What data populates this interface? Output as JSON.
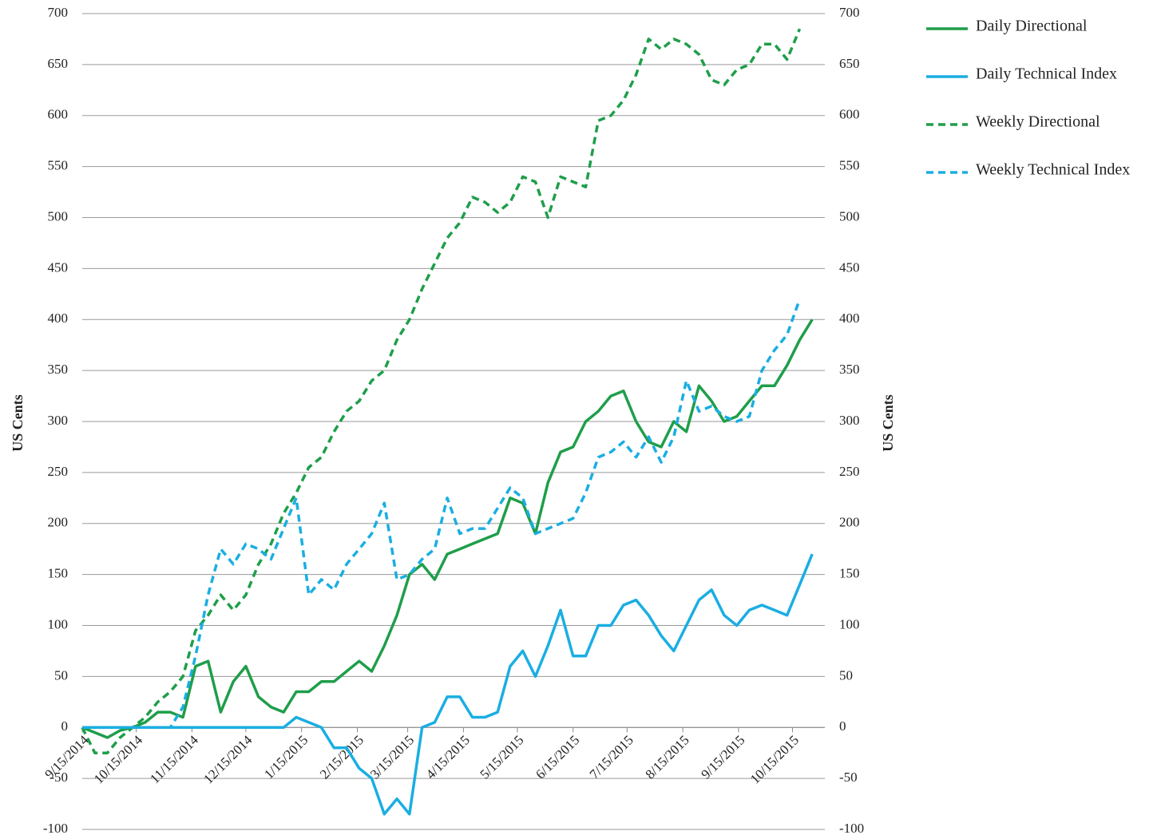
{
  "chart_data": {
    "type": "line",
    "y_label": "US Cents",
    "y2_label": "US Cents",
    "x": [
      "9/15/2014",
      "9/22/2014",
      "9/29/2014",
      "10/6/2014",
      "10/13/2014",
      "10/20/2014",
      "10/27/2014",
      "11/3/2014",
      "11/10/2014",
      "11/17/2014",
      "11/24/2014",
      "12/1/2014",
      "12/8/2014",
      "12/15/2014",
      "12/22/2014",
      "12/29/2014",
      "1/5/2015",
      "1/12/2015",
      "1/19/2015",
      "1/26/2015",
      "2/2/2015",
      "2/9/2015",
      "2/16/2015",
      "2/23/2015",
      "3/2/2015",
      "3/9/2015",
      "3/16/2015",
      "3/23/2015",
      "3/30/2015",
      "4/6/2015",
      "4/13/2015",
      "4/20/2015",
      "4/27/2015",
      "5/4/2015",
      "5/11/2015",
      "5/18/2015",
      "5/25/2015",
      "6/1/2015",
      "6/8/2015",
      "6/15/2015",
      "6/22/2015",
      "6/29/2015",
      "7/6/2015",
      "7/13/2015",
      "7/20/2015",
      "7/27/2015",
      "8/3/2015",
      "8/10/2015",
      "8/17/2015",
      "8/24/2015",
      "8/31/2015",
      "9/7/2015",
      "9/14/2015",
      "9/21/2015",
      "9/28/2015",
      "10/5/2015",
      "10/12/2015",
      "10/19/2015",
      "10/26/2015"
    ],
    "series": [
      {
        "name": "Daily Directional",
        "color": "#1f9e4a",
        "dash": false,
        "values": [
          0,
          -5,
          -10,
          -3,
          0,
          5,
          15,
          15,
          10,
          60,
          65,
          15,
          45,
          60,
          30,
          20,
          15,
          35,
          35,
          45,
          45,
          55,
          65,
          55,
          80,
          110,
          150,
          160,
          145,
          170,
          175,
          180,
          185,
          190,
          225,
          220,
          190,
          240,
          270,
          275,
          300,
          310,
          325,
          330,
          300,
          280,
          275,
          300,
          290,
          335,
          320,
          300,
          305,
          320,
          335,
          335,
          355,
          380,
          400
        ]
      },
      {
        "name": "Daily Technical Index",
        "color": "#1aaee2",
        "dash": false,
        "values": [
          0,
          0,
          0,
          0,
          0,
          0,
          0,
          0,
          0,
          0,
          0,
          0,
          0,
          0,
          0,
          0,
          0,
          10,
          5,
          0,
          -20,
          -20,
          -40,
          -50,
          -85,
          -70,
          -85,
          0,
          5,
          30,
          30,
          10,
          10,
          15,
          60,
          75,
          50,
          80,
          115,
          70,
          70,
          100,
          100,
          120,
          125,
          110,
          90,
          75,
          100,
          125,
          135,
          110,
          100,
          115,
          120,
          115,
          110,
          140,
          170
        ]
      },
      {
        "name": "Weekly Directional",
        "color": "#1f9e4a",
        "dash": true,
        "values": [
          0,
          -25,
          -25,
          -10,
          0,
          10,
          25,
          35,
          50,
          95,
          110,
          130,
          115,
          130,
          160,
          180,
          210,
          230,
          255,
          265,
          290,
          310,
          320,
          340,
          350,
          380,
          400,
          430,
          455,
          480,
          495,
          520,
          515,
          505,
          515,
          540,
          535,
          500,
          540,
          535,
          530,
          595,
          600,
          615,
          640,
          675,
          665,
          675,
          670,
          660,
          635,
          630,
          645,
          650,
          670,
          670,
          655,
          685,
          null
        ]
      },
      {
        "name": "Weekly Technical Index",
        "color": "#1aaee2",
        "dash": true,
        "values": [
          0,
          0,
          0,
          0,
          0,
          0,
          0,
          0,
          20,
          70,
          130,
          175,
          160,
          180,
          175,
          165,
          195,
          225,
          130,
          145,
          135,
          160,
          175,
          190,
          220,
          145,
          150,
          165,
          175,
          225,
          190,
          195,
          195,
          215,
          235,
          225,
          190,
          195,
          200,
          205,
          230,
          265,
          270,
          280,
          265,
          285,
          260,
          285,
          340,
          310,
          315,
          305,
          300,
          305,
          350,
          370,
          385,
          420,
          null
        ]
      }
    ],
    "xlim": [
      "9/15/2014",
      "11/2/2015"
    ],
    "xticks": [
      "9/15/2014",
      "10/15/2014",
      "11/15/2014",
      "12/15/2014",
      "1/15/2015",
      "2/15/2015",
      "3/15/2015",
      "4/15/2015",
      "5/15/2015",
      "6/15/2015",
      "7/15/2015",
      "8/15/2015",
      "9/15/2015",
      "10/15/2015"
    ],
    "ylim": [
      -100,
      700
    ],
    "yticks": [
      -100,
      -50,
      0,
      50,
      100,
      150,
      200,
      250,
      300,
      350,
      400,
      450,
      500,
      550,
      600,
      650,
      700
    ],
    "y2lim": [
      -100,
      700
    ],
    "y2ticks": [
      -100,
      -50,
      0,
      50,
      100,
      150,
      200,
      250,
      300,
      350,
      400,
      450,
      500,
      550,
      600,
      650,
      700
    ],
    "grid": true,
    "legend": "right"
  }
}
